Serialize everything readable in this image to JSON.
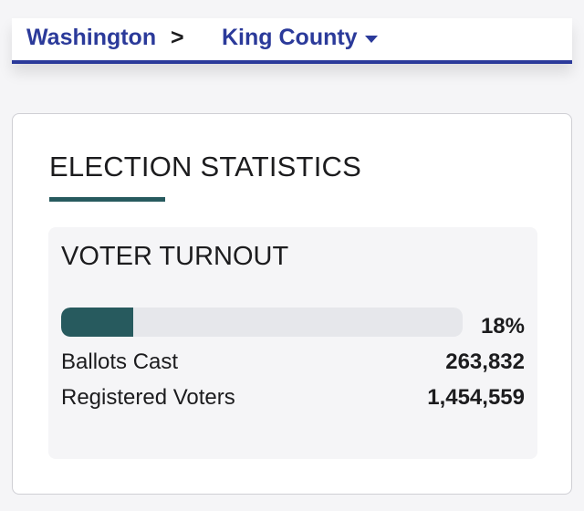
{
  "breadcrumb": {
    "state": "Washington",
    "separator": ">",
    "county": "King County",
    "county_icon": "caret-down-icon"
  },
  "card": {
    "title": "ELECTION STATISTICS"
  },
  "turnout": {
    "title": "VOTER TURNOUT",
    "percent": 18,
    "percent_label": "18%",
    "ballots_label": "Ballots Cast",
    "ballots_value": "263,832",
    "registered_label": "Registered Voters",
    "registered_value": "1,454,559"
  },
  "colors": {
    "brand_blue": "#2b3a9a",
    "accent_teal": "#275a5e"
  }
}
